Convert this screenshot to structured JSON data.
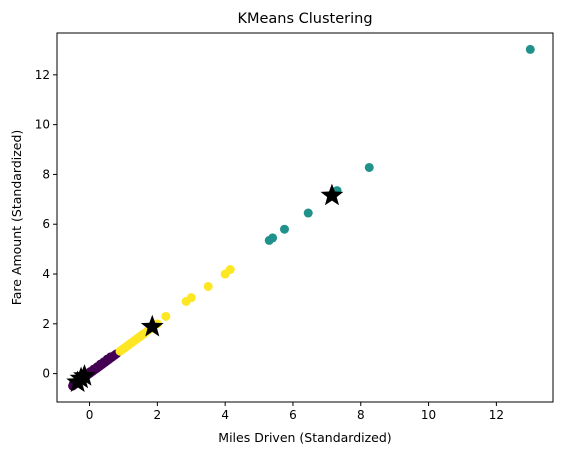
{
  "chart_data": {
    "type": "scatter",
    "title": "KMeans Clustering",
    "xlabel": "Miles Driven (Standardized)",
    "ylabel": "Fare Amount (Standardized)",
    "xlim": [
      -0.96,
      13.67
    ],
    "ylim": [
      -1.14,
      13.68
    ],
    "xticks": [
      0,
      2,
      4,
      6,
      8,
      10,
      12
    ],
    "yticks": [
      0,
      2,
      4,
      6,
      8,
      10,
      12
    ],
    "grid": false,
    "legend": "none",
    "colors": {
      "cluster_0": "#440154",
      "cluster_1": "#21918c",
      "cluster_2": "#fde725",
      "centroid": "#000000",
      "axes": "#000000",
      "background": "#ffffff"
    },
    "clusters": [
      {
        "cluster": 0,
        "points": [
          [
            -0.5,
            -0.5
          ],
          [
            -0.45,
            -0.45
          ],
          [
            -0.4,
            -0.4
          ],
          [
            -0.35,
            -0.35
          ],
          [
            -0.3,
            -0.3
          ],
          [
            -0.25,
            -0.25
          ],
          [
            -0.2,
            -0.2
          ],
          [
            -0.15,
            -0.15
          ],
          [
            -0.1,
            -0.1
          ],
          [
            -0.05,
            -0.05
          ],
          [
            0,
            0
          ],
          [
            0.05,
            0.05
          ],
          [
            0.1,
            0.1
          ],
          [
            0.15,
            0.15
          ],
          [
            0.2,
            0.2
          ],
          [
            0.25,
            0.25
          ],
          [
            0.3,
            0.3
          ],
          [
            0.35,
            0.35
          ],
          [
            0.4,
            0.4
          ],
          [
            0.45,
            0.45
          ],
          [
            0.5,
            0.5
          ],
          [
            0.55,
            0.55
          ],
          [
            0.6,
            0.6
          ],
          [
            0.65,
            0.65
          ],
          [
            0.7,
            0.7
          ],
          [
            0.75,
            0.75
          ],
          [
            0.8,
            0.8
          ],
          [
            -0.48,
            -0.42
          ],
          [
            -0.38,
            -0.33
          ],
          [
            -0.28,
            -0.22
          ],
          [
            -0.18,
            -0.12
          ],
          [
            -0.08,
            -0.03
          ],
          [
            0.02,
            0.08
          ],
          [
            0.12,
            0.18
          ],
          [
            0.22,
            0.27
          ],
          [
            0.32,
            0.38
          ],
          [
            0.42,
            0.47
          ],
          [
            0.52,
            0.58
          ],
          [
            0.62,
            0.67
          ]
        ]
      },
      {
        "cluster": 1,
        "points": [
          [
            5.3,
            5.35
          ],
          [
            5.4,
            5.45
          ],
          [
            5.75,
            5.8
          ],
          [
            6.45,
            6.45
          ],
          [
            7.3,
            7.35
          ],
          [
            8.25,
            8.28
          ],
          [
            13.0,
            13.02
          ]
        ]
      },
      {
        "cluster": 2,
        "points": [
          [
            0.9,
            0.9
          ],
          [
            0.95,
            0.95
          ],
          [
            1.0,
            1.0
          ],
          [
            1.05,
            1.05
          ],
          [
            1.1,
            1.1
          ],
          [
            1.15,
            1.15
          ],
          [
            1.2,
            1.2
          ],
          [
            1.25,
            1.25
          ],
          [
            1.3,
            1.3
          ],
          [
            1.35,
            1.35
          ],
          [
            1.4,
            1.4
          ],
          [
            1.45,
            1.45
          ],
          [
            1.5,
            1.5
          ],
          [
            1.55,
            1.55
          ],
          [
            1.6,
            1.6
          ],
          [
            1.7,
            1.7
          ],
          [
            1.8,
            1.8
          ],
          [
            2.0,
            2.0
          ],
          [
            2.25,
            2.3
          ],
          [
            2.85,
            2.9
          ],
          [
            3.0,
            3.05
          ],
          [
            3.5,
            3.5
          ],
          [
            4.0,
            4.0
          ],
          [
            4.15,
            4.18
          ]
        ]
      }
    ],
    "centroids": [
      [
        -0.35,
        -0.35
      ],
      [
        -0.25,
        -0.2
      ],
      [
        -0.15,
        -0.1
      ],
      [
        1.85,
        1.88
      ],
      [
        7.15,
        7.15
      ]
    ]
  }
}
